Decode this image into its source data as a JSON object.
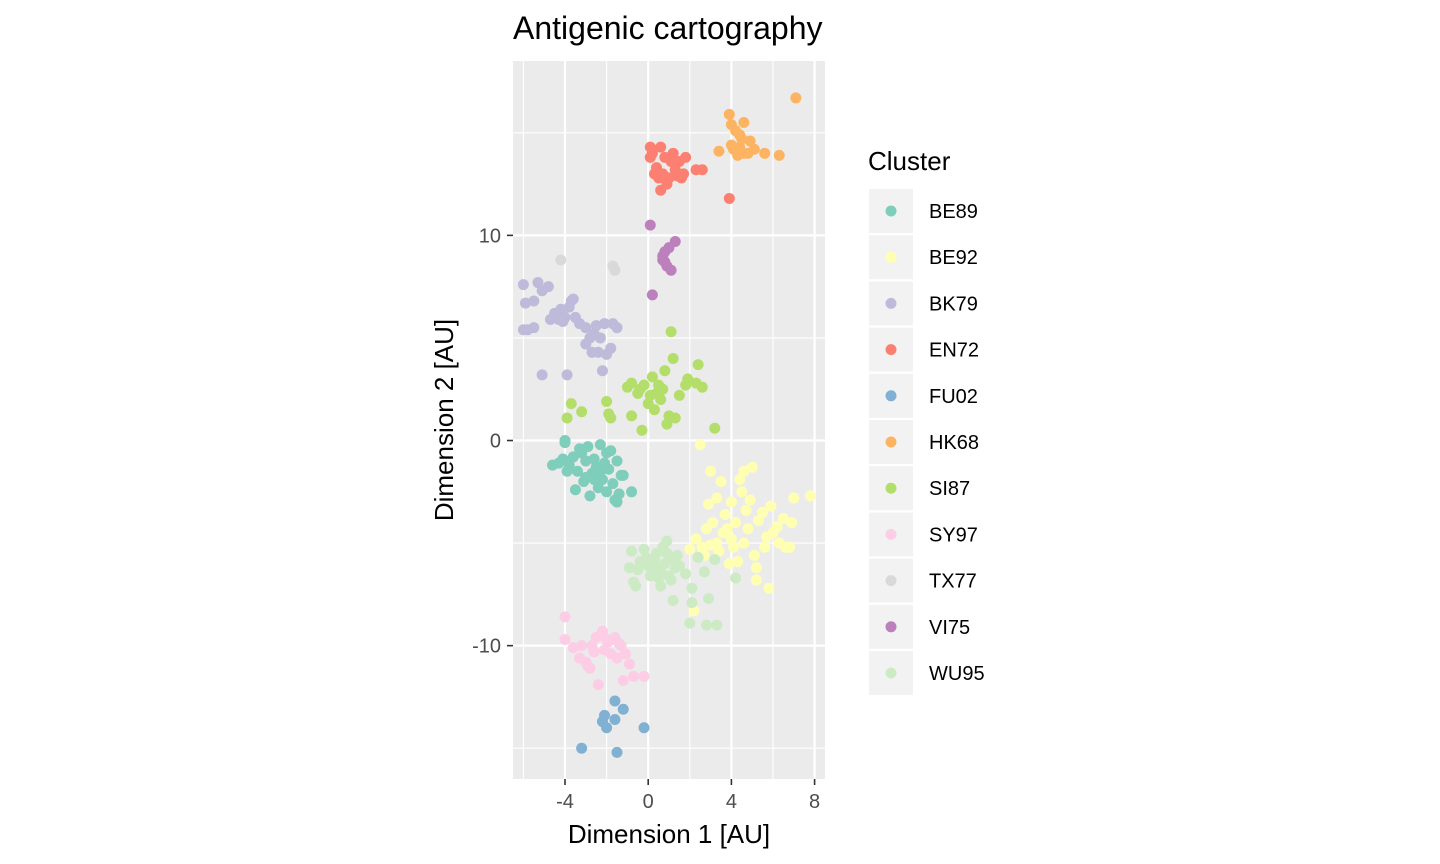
{
  "chart_data": {
    "type": "scatter",
    "title": "Antigenic cartography",
    "xlabel": "Dimension 1 [AU]",
    "ylabel": "Dimension 2 [AU]",
    "xlim": [
      -6.5,
      8.5
    ],
    "ylim": [
      -16.5,
      18.5
    ],
    "x_ticks": [
      -4,
      0,
      4,
      8
    ],
    "x_tick_labels": [
      "-4",
      "0",
      "4",
      "8"
    ],
    "y_ticks": [
      -10,
      0,
      10
    ],
    "y_tick_labels": [
      "-10",
      "0",
      "10"
    ],
    "grid": true,
    "legend_title": "Cluster",
    "legend_position": "right",
    "series": [
      {
        "name": "BE89",
        "color": "#7fcdbb",
        "points": [
          [
            -4.0,
            0.0
          ],
          [
            -4.0,
            -0.1
          ],
          [
            -4.3,
            -1.1
          ],
          [
            -4.1,
            -0.9
          ],
          [
            -3.8,
            -1.2
          ],
          [
            -3.6,
            -0.8
          ],
          [
            -3.4,
            -1.5
          ],
          [
            -3.2,
            -0.6
          ],
          [
            -3.0,
            -1.0
          ],
          [
            -2.9,
            -0.3
          ],
          [
            -2.7,
            -1.6
          ],
          [
            -2.6,
            -0.9
          ],
          [
            -2.5,
            -1.3
          ],
          [
            -2.3,
            -0.2
          ],
          [
            -2.2,
            -1.9
          ],
          [
            -2.0,
            -0.6
          ],
          [
            -1.9,
            -1.4
          ],
          [
            -1.7,
            -2.1
          ],
          [
            -1.5,
            -1.0
          ],
          [
            -1.4,
            -2.6
          ],
          [
            -1.3,
            -1.7
          ],
          [
            -3.5,
            -2.4
          ],
          [
            -3.1,
            -2.0
          ],
          [
            -2.8,
            -2.7
          ],
          [
            -2.4,
            -2.3
          ],
          [
            -2.0,
            -2.5
          ],
          [
            -1.6,
            -2.9
          ],
          [
            -1.2,
            -1.7
          ],
          [
            -0.8,
            -2.5
          ],
          [
            -3.9,
            -1.5
          ],
          [
            -3.3,
            -0.4
          ],
          [
            -2.1,
            -1.1
          ],
          [
            -1.8,
            -0.5
          ],
          [
            -2.6,
            -1.9
          ],
          [
            -4.6,
            -1.2
          ],
          [
            -1.5,
            -3.0
          ],
          [
            -3.0,
            -1.8
          ],
          [
            -2.3,
            -1.5
          ]
        ]
      },
      {
        "name": "BE92",
        "color": "#ffffb3",
        "points": [
          [
            2.5,
            -0.2
          ],
          [
            3.0,
            -1.5
          ],
          [
            3.5,
            -2.0
          ],
          [
            4.0,
            -3.0
          ],
          [
            4.5,
            -2.5
          ],
          [
            5.0,
            -1.3
          ],
          [
            5.5,
            -3.5
          ],
          [
            6.0,
            -4.5
          ],
          [
            6.5,
            -3.8
          ],
          [
            7.0,
            -2.8
          ],
          [
            7.8,
            -2.7
          ],
          [
            6.8,
            -5.2
          ],
          [
            5.8,
            -7.2
          ],
          [
            5.2,
            -6.2
          ],
          [
            4.6,
            -5.0
          ],
          [
            4.2,
            -4.0
          ],
          [
            3.7,
            -3.6
          ],
          [
            3.3,
            -5.0
          ],
          [
            2.8,
            -4.3
          ],
          [
            2.3,
            -4.8
          ],
          [
            2.0,
            -5.3
          ],
          [
            2.7,
            -5.6
          ],
          [
            3.1,
            -4.0
          ],
          [
            3.6,
            -4.5
          ],
          [
            4.1,
            -5.2
          ],
          [
            4.8,
            -4.3
          ],
          [
            5.3,
            -3.9
          ],
          [
            5.7,
            -4.7
          ],
          [
            6.2,
            -4.2
          ],
          [
            6.6,
            -5.2
          ],
          [
            4.4,
            -1.9
          ],
          [
            4.9,
            -2.9
          ],
          [
            5.1,
            -5.6
          ],
          [
            3.9,
            -6.0
          ],
          [
            3.4,
            -5.4
          ],
          [
            4.7,
            -3.4
          ],
          [
            5.9,
            -3.2
          ],
          [
            2.9,
            -3.1
          ],
          [
            3.0,
            -5.1
          ],
          [
            4.3,
            -5.9
          ],
          [
            5.6,
            -5.2
          ],
          [
            6.3,
            -5.0
          ],
          [
            2.2,
            -8.3
          ],
          [
            2.6,
            -5.2
          ],
          [
            3.8,
            -4.3
          ],
          [
            4.0,
            -4.8
          ],
          [
            4.6,
            -1.5
          ],
          [
            5.2,
            -6.8
          ],
          [
            6.9,
            -4.0
          ],
          [
            3.3,
            -2.8
          ]
        ]
      },
      {
        "name": "BK79",
        "color": "#bebada",
        "points": [
          [
            -6.0,
            7.6
          ],
          [
            -5.9,
            6.7
          ],
          [
            -5.5,
            6.8
          ],
          [
            -5.3,
            7.7
          ],
          [
            -5.1,
            7.3
          ],
          [
            -4.8,
            7.5
          ],
          [
            -4.5,
            6.2
          ],
          [
            -4.3,
            5.9
          ],
          [
            -4.0,
            6.0
          ],
          [
            -3.8,
            6.5
          ],
          [
            -3.6,
            6.9
          ],
          [
            -3.3,
            5.7
          ],
          [
            -3.0,
            4.7
          ],
          [
            -2.8,
            5.0
          ],
          [
            -2.5,
            5.6
          ],
          [
            -2.3,
            5.0
          ],
          [
            -2.1,
            5.7
          ],
          [
            -2.0,
            4.2
          ],
          [
            -1.8,
            4.5
          ],
          [
            -1.5,
            5.5
          ],
          [
            -2.2,
            3.4
          ],
          [
            -2.7,
            4.3
          ],
          [
            -3.9,
            3.2
          ],
          [
            -5.1,
            3.2
          ],
          [
            -5.8,
            5.4
          ],
          [
            -6.0,
            5.4
          ],
          [
            -4.2,
            6.4
          ],
          [
            -3.7,
            6.8
          ],
          [
            -2.6,
            5.2
          ],
          [
            -3.0,
            5.5
          ],
          [
            -1.7,
            5.7
          ],
          [
            -4.7,
            5.9
          ],
          [
            -5.5,
            5.5
          ],
          [
            -2.4,
            4.3
          ],
          [
            -3.5,
            6.0
          ],
          [
            -4.1,
            5.8
          ]
        ]
      },
      {
        "name": "EN72",
        "color": "#fb8072",
        "points": [
          [
            0.1,
            14.3
          ],
          [
            0.1,
            13.8
          ],
          [
            0.6,
            14.3
          ],
          [
            0.8,
            13.8
          ],
          [
            1.2,
            14.0
          ],
          [
            1.5,
            13.6
          ],
          [
            1.8,
            13.8
          ],
          [
            0.4,
            13.3
          ],
          [
            0.7,
            13.0
          ],
          [
            1.0,
            12.8
          ],
          [
            1.3,
            13.2
          ],
          [
            1.7,
            13.0
          ],
          [
            2.3,
            13.2
          ],
          [
            2.6,
            13.2
          ],
          [
            0.6,
            12.2
          ],
          [
            0.9,
            12.5
          ],
          [
            1.4,
            12.9
          ],
          [
            0.3,
            13.0
          ],
          [
            1.1,
            13.6
          ],
          [
            3.9,
            11.8
          ],
          [
            0.5,
            12.8
          ],
          [
            1.6,
            12.8
          ],
          [
            0.2,
            14.0
          ]
        ]
      },
      {
        "name": "FU02",
        "color": "#80b1d3",
        "points": [
          [
            -3.2,
            -15.0
          ],
          [
            -2.2,
            -13.7
          ],
          [
            -2.0,
            -14.0
          ],
          [
            -1.6,
            -13.6
          ],
          [
            -1.6,
            -12.7
          ],
          [
            -1.2,
            -13.1
          ],
          [
            -1.5,
            -15.2
          ],
          [
            -0.2,
            -14.0
          ],
          [
            -2.1,
            -13.4
          ]
        ]
      },
      {
        "name": "HK68",
        "color": "#fdb462",
        "points": [
          [
            3.9,
            15.9
          ],
          [
            4.0,
            15.4
          ],
          [
            4.6,
            15.5
          ],
          [
            4.2,
            15.1
          ],
          [
            4.4,
            14.9
          ],
          [
            4.0,
            14.4
          ],
          [
            3.4,
            14.1
          ],
          [
            4.4,
            14.3
          ],
          [
            4.6,
            14.0
          ],
          [
            4.9,
            14.6
          ],
          [
            5.1,
            14.2
          ],
          [
            5.6,
            14.0
          ],
          [
            6.3,
            13.9
          ],
          [
            7.1,
            16.7
          ],
          [
            4.5,
            14.7
          ],
          [
            4.1,
            14.2
          ],
          [
            4.8,
            14.0
          ],
          [
            4.3,
            13.9
          ]
        ]
      },
      {
        "name": "SI87",
        "color": "#b3de69",
        "points": [
          [
            -3.9,
            1.1
          ],
          [
            -3.7,
            1.8
          ],
          [
            -3.2,
            1.4
          ],
          [
            -2.0,
            1.9
          ],
          [
            -1.9,
            1.3
          ],
          [
            -1.8,
            1.1
          ],
          [
            -1.0,
            2.6
          ],
          [
            -0.8,
            2.8
          ],
          [
            -0.4,
            2.5
          ],
          [
            0.1,
            2.2
          ],
          [
            0.2,
            3.1
          ],
          [
            0.5,
            2.7
          ],
          [
            0.8,
            3.4
          ],
          [
            1.2,
            4.0
          ],
          [
            1.5,
            2.2
          ],
          [
            1.8,
            2.7
          ],
          [
            2.3,
            2.8
          ],
          [
            2.4,
            3.7
          ],
          [
            2.6,
            2.6
          ],
          [
            1.0,
            1.2
          ],
          [
            0.9,
            0.8
          ],
          [
            0.6,
            2.0
          ],
          [
            0.3,
            1.5
          ],
          [
            -0.3,
            0.5
          ],
          [
            -0.8,
            1.2
          ],
          [
            -0.5,
            2.3
          ],
          [
            1.9,
            3.0
          ],
          [
            3.2,
            0.6
          ],
          [
            0.0,
            1.8
          ],
          [
            0.7,
            2.5
          ],
          [
            1.3,
            1.1
          ],
          [
            1.1,
            5.3
          ],
          [
            -0.2,
            2.7
          ],
          [
            0.4,
            2.3
          ]
        ]
      },
      {
        "name": "SY97",
        "color": "#fccde5",
        "points": [
          [
            -4.0,
            -8.6
          ],
          [
            -4.0,
            -9.7
          ],
          [
            -3.6,
            -10.1
          ],
          [
            -3.2,
            -10.0
          ],
          [
            -3.0,
            -10.8
          ],
          [
            -2.8,
            -11.1
          ],
          [
            -2.6,
            -10.3
          ],
          [
            -2.5,
            -9.6
          ],
          [
            -2.2,
            -9.3
          ],
          [
            -2.0,
            -9.7
          ],
          [
            -1.8,
            -10.4
          ],
          [
            -1.6,
            -9.6
          ],
          [
            -1.5,
            -10.6
          ],
          [
            -1.3,
            -10.0
          ],
          [
            -1.1,
            -10.4
          ],
          [
            -0.9,
            -10.9
          ],
          [
            -0.7,
            -11.5
          ],
          [
            -1.2,
            -11.7
          ],
          [
            -2.4,
            -11.9
          ],
          [
            -2.9,
            -11.0
          ],
          [
            -3.3,
            -10.6
          ],
          [
            -2.1,
            -10.2
          ],
          [
            -1.9,
            -9.8
          ],
          [
            -2.7,
            -10.0
          ],
          [
            -1.4,
            -9.9
          ],
          [
            -0.2,
            -11.5
          ]
        ]
      },
      {
        "name": "TX77",
        "color": "#d9d9d9",
        "points": [
          [
            -4.2,
            8.8
          ],
          [
            -1.7,
            8.5
          ],
          [
            -1.6,
            8.3
          ]
        ]
      },
      {
        "name": "VI75",
        "color": "#bc80bd",
        "points": [
          [
            0.1,
            10.5
          ],
          [
            0.7,
            9.0
          ],
          [
            0.8,
            9.2
          ],
          [
            1.0,
            9.4
          ],
          [
            1.3,
            9.7
          ],
          [
            0.7,
            8.8
          ],
          [
            0.9,
            8.5
          ],
          [
            1.1,
            8.3
          ],
          [
            0.8,
            8.7
          ],
          [
            0.2,
            7.1
          ]
        ]
      },
      {
        "name": "WU95",
        "color": "#ccebc5",
        "points": [
          [
            -0.8,
            -5.4
          ],
          [
            -0.2,
            -5.3
          ],
          [
            -0.1,
            -5.7
          ],
          [
            0.3,
            -6.1
          ],
          [
            0.6,
            -6.3
          ],
          [
            0.9,
            -5.5
          ],
          [
            1.2,
            -5.8
          ],
          [
            0.9,
            -4.9
          ],
          [
            1.4,
            -5.6
          ],
          [
            0.1,
            -6.6
          ],
          [
            0.5,
            -6.7
          ],
          [
            -0.7,
            -6.9
          ],
          [
            -0.9,
            -6.2
          ],
          [
            -0.5,
            -6.3
          ],
          [
            1.2,
            -7.8
          ],
          [
            2.1,
            -7.2
          ],
          [
            2.1,
            -7.9
          ],
          [
            2.7,
            -6.4
          ],
          [
            3.2,
            -5.8
          ],
          [
            4.2,
            -6.7
          ],
          [
            2.0,
            -8.9
          ],
          [
            2.8,
            -9.0
          ],
          [
            3.3,
            -9.0
          ],
          [
            2.9,
            -7.7
          ],
          [
            0.0,
            -6.1
          ],
          [
            0.3,
            -5.8
          ],
          [
            0.6,
            -7.1
          ],
          [
            1.0,
            -6.6
          ],
          [
            1.8,
            -6.5
          ],
          [
            -0.3,
            -6.0
          ],
          [
            0.8,
            -6.0
          ],
          [
            1.5,
            -6.1
          ],
          [
            -0.6,
            -7.1
          ],
          [
            0.4,
            -5.5
          ],
          [
            1.1,
            -6.8
          ],
          [
            2.4,
            -5.7
          ],
          [
            0.2,
            -6.4
          ],
          [
            1.3,
            -6.2
          ],
          [
            -0.4,
            -5.9
          ],
          [
            0.7,
            -5.2
          ]
        ]
      }
    ]
  }
}
